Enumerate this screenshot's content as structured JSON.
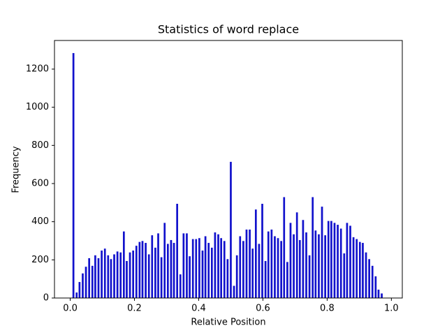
{
  "chart_data": {
    "type": "bar",
    "title": "Statistics of word replace",
    "xlabel": "Relative Position",
    "ylabel": "Frequency",
    "color": "#1111cc",
    "x": [
      0.01,
      0.02,
      0.029,
      0.039,
      0.049,
      0.059,
      0.069,
      0.078,
      0.088,
      0.098,
      0.108,
      0.118,
      0.127,
      0.137,
      0.147,
      0.157,
      0.167,
      0.176,
      0.186,
      0.196,
      0.206,
      0.216,
      0.225,
      0.235,
      0.245,
      0.255,
      0.265,
      0.274,
      0.284,
      0.294,
      0.304,
      0.314,
      0.323,
      0.333,
      0.343,
      0.353,
      0.363,
      0.372,
      0.382,
      0.392,
      0.402,
      0.412,
      0.421,
      0.431,
      0.441,
      0.451,
      0.461,
      0.47,
      0.48,
      0.49,
      0.5,
      0.51,
      0.519,
      0.529,
      0.539,
      0.549,
      0.559,
      0.568,
      0.578,
      0.588,
      0.598,
      0.608,
      0.617,
      0.627,
      0.637,
      0.647,
      0.657,
      0.666,
      0.676,
      0.686,
      0.696,
      0.706,
      0.715,
      0.725,
      0.735,
      0.745,
      0.755,
      0.764,
      0.774,
      0.784,
      0.794,
      0.804,
      0.813,
      0.823,
      0.833,
      0.843,
      0.853,
      0.862,
      0.872,
      0.882,
      0.892,
      0.902,
      0.911,
      0.921,
      0.931,
      0.941,
      0.951,
      0.96,
      0.97
    ],
    "values": [
      1285,
      30,
      85,
      130,
      165,
      210,
      170,
      225,
      210,
      250,
      260,
      225,
      205,
      230,
      245,
      240,
      350,
      195,
      240,
      250,
      275,
      295,
      300,
      290,
      230,
      330,
      265,
      340,
      215,
      395,
      285,
      305,
      290,
      495,
      125,
      340,
      340,
      220,
      310,
      310,
      315,
      250,
      325,
      290,
      265,
      345,
      335,
      315,
      300,
      205,
      715,
      65,
      225,
      325,
      300,
      360,
      360,
      260,
      465,
      285,
      495,
      195,
      350,
      360,
      325,
      315,
      300,
      530,
      190,
      395,
      335,
      450,
      305,
      410,
      345,
      225,
      530,
      355,
      335,
      480,
      330,
      405,
      405,
      395,
      385,
      365,
      235,
      395,
      380,
      320,
      310,
      295,
      290,
      240,
      205,
      170,
      115,
      45,
      25
    ],
    "xlim": [
      -0.049,
      1.034
    ],
    "ylim": [
      0,
      1350
    ],
    "xticks": [
      {
        "value": 0,
        "label": "0.0"
      },
      0.2,
      0.4,
      0.6,
      0.8,
      {
        "value": 1,
        "label": "1.0"
      }
    ],
    "yticks": [
      0,
      200,
      400,
      600,
      800,
      1000,
      1200
    ]
  }
}
